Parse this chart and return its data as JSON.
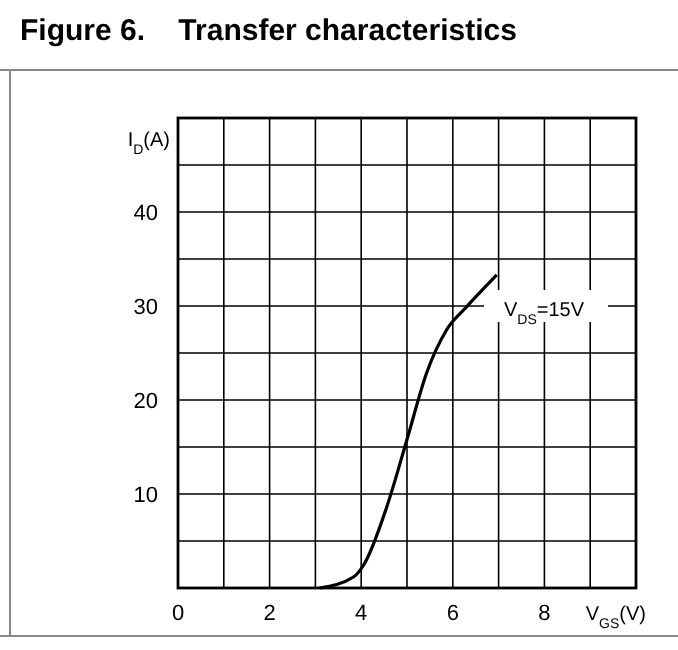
{
  "chart_data": {
    "type": "line",
    "title": "Figure 6.    Transfer characteristics",
    "xlabel": "V$_{GS}$(V)",
    "ylabel": "I$_{D}$(A)",
    "x": [
      3.09,
      3.84,
      4.06,
      4.57,
      5.0,
      5.43,
      5.87,
      6.3,
      6.96
    ],
    "series": [
      {
        "color": "#000000",
        "values": [
          0,
          1.2,
          2.5,
          8.8,
          15.8,
          22.9,
          27.5,
          29.9,
          33.3
        ]
      }
    ],
    "xlim": [
      0,
      10
    ],
    "ylim": [
      0,
      50
    ],
    "xticks": [
      0,
      {
        "value": 1,
        "label": null
      },
      2,
      {
        "value": 3,
        "label": null
      },
      4,
      {
        "value": 5,
        "label": null
      },
      6,
      {
        "value": 7,
        "label": null
      },
      8,
      {
        "value": 9,
        "label": null
      },
      {
        "value": 10,
        "label": null
      }
    ],
    "yticks": [
      {
        "value": 0,
        "label": null
      },
      {
        "value": 5,
        "label": null
      },
      10,
      {
        "value": 15,
        "label": null
      },
      20,
      {
        "value": 25,
        "label": null
      },
      30,
      {
        "value": 35,
        "label": null
      },
      40,
      {
        "value": 45,
        "label": null
      },
      {
        "value": 50,
        "label": null
      }
    ],
    "grid": true,
    "marker": "none",
    "line_style": "solid",
    "annotations": [
      "V$_{DS}$=15V"
    ]
  }
}
